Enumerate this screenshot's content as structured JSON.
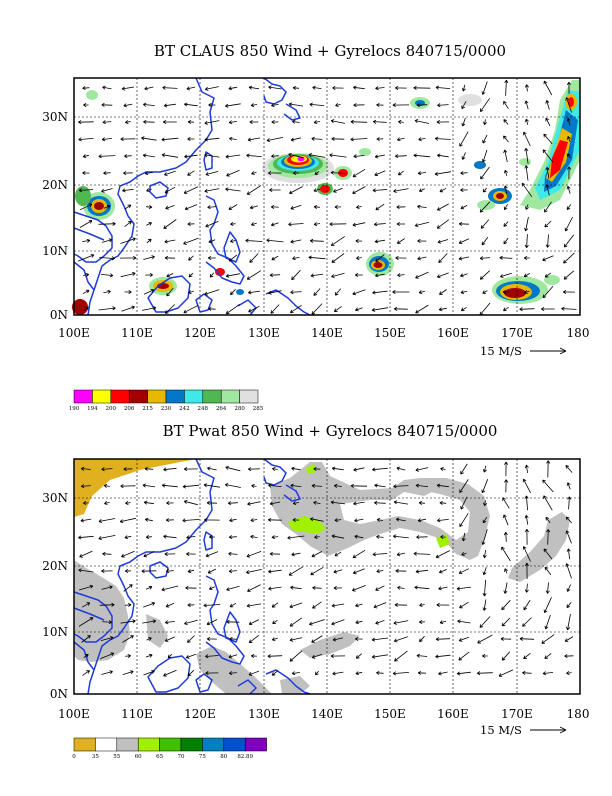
{
  "panel1": {
    "title": "BT CLAUS 850 Wind + Gyrelocs 840715/0000",
    "y_labels": [
      "30N",
      "20N",
      "10N",
      "0N"
    ],
    "x_labels": [
      "100E",
      "110E",
      "120E",
      "130E",
      "140E",
      "150E",
      "160E",
      "170E",
      "180"
    ],
    "scale_label": "15 M/S",
    "colorbar": {
      "colors": [
        "#ff00ff",
        "#ffff00",
        "#ff0000",
        "#a00000",
        "#e8b800",
        "#0078c8",
        "#40e8e8",
        "#50b850",
        "#a0e8a0",
        "#e0e0e0"
      ],
      "labels": [
        "190",
        "194",
        "200",
        "206",
        "215",
        "230",
        "242",
        "248",
        "264",
        "280",
        "285"
      ]
    }
  },
  "panel2": {
    "title": "BT Pwat 850 Wind + Gyrelocs 840715/0000",
    "y_labels": [
      "30N",
      "20N",
      "10N",
      "0N"
    ],
    "x_labels": [
      "100E",
      "110E",
      "120E",
      "130E",
      "140E",
      "150E",
      "160E",
      "170E",
      "180"
    ],
    "scale_label": "15 M/S",
    "colorbar": {
      "colors": [
        "#e0b020",
        "#ffffff",
        "#c0c0c0",
        "#a0f000",
        "#40c000",
        "#008000",
        "#0080c0",
        "#0050d0",
        "#8000c0"
      ],
      "labels": [
        "0",
        "35",
        "55",
        "60",
        "65",
        "70",
        "75",
        "80",
        "82.89"
      ]
    }
  },
  "colors": {
    "coast": "#1f3cd6",
    "frame": "#000000"
  }
}
